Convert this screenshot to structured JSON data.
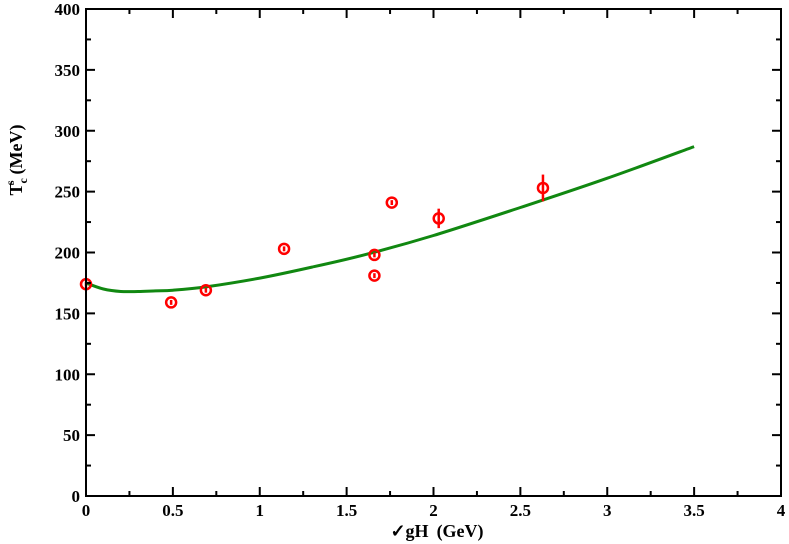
{
  "chart_data": {
    "type": "scatter",
    "xlabel_parts": {
      "root": "✓",
      "main": "gH",
      "units": "(GeV)"
    },
    "ylabel_parts": {
      "main": "T",
      "sub": "c",
      "sup": "s",
      "units": "(MeV)"
    },
    "xlim": [
      0,
      4
    ],
    "ylim": [
      0,
      400
    ],
    "x_ticks": [
      0,
      0.5,
      1,
      1.5,
      2,
      2.5,
      3,
      3.5,
      4
    ],
    "x_tick_labels": [
      "0",
      "0.5",
      "1",
      "1.5",
      "2",
      "2.5",
      "3",
      "3.5",
      "4"
    ],
    "y_ticks": [
      0,
      50,
      100,
      150,
      200,
      250,
      300,
      350,
      400
    ],
    "y_tick_labels": [
      "0",
      "50",
      "100",
      "150",
      "200",
      "250",
      "300",
      "350",
      "400"
    ],
    "grid": false,
    "colors": {
      "points": "#ff0000",
      "curve": "#118811",
      "axes": "#000000"
    },
    "points": [
      {
        "x": 0.0,
        "y": 174,
        "err": 2
      },
      {
        "x": 0.49,
        "y": 159,
        "err": 2
      },
      {
        "x": 0.69,
        "y": 169,
        "err": 2
      },
      {
        "x": 1.14,
        "y": 203,
        "err": 2
      },
      {
        "x": 1.66,
        "y": 198,
        "err": 2
      },
      {
        "x": 1.66,
        "y": 181,
        "err": 2
      },
      {
        "x": 1.76,
        "y": 241,
        "err": 2
      },
      {
        "x": 2.03,
        "y": 228,
        "err": 8
      },
      {
        "x": 2.63,
        "y": 253,
        "err": 11
      }
    ],
    "curve": {
      "x": [
        0,
        0.1,
        0.2,
        0.3,
        0.4,
        0.5,
        0.7,
        1.0,
        1.3,
        1.6,
        2.0,
        2.5,
        3.0,
        3.5
      ],
      "y": [
        175,
        170,
        168,
        168,
        168.5,
        169,
        172,
        179,
        188,
        198,
        214,
        237,
        261,
        287
      ]
    }
  }
}
